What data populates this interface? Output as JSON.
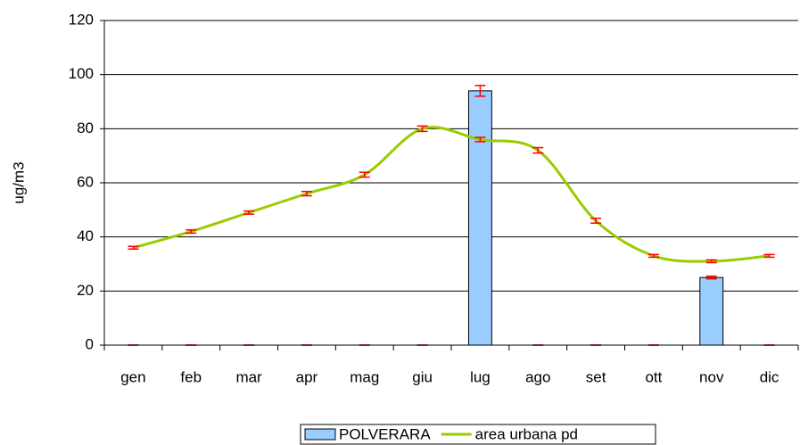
{
  "chart_data": {
    "type": "bar",
    "categories": [
      "gen",
      "feb",
      "mar",
      "apr",
      "mag",
      "giu",
      "lug",
      "ago",
      "set",
      "ott",
      "nov",
      "dic"
    ],
    "y_label": "ug/m3",
    "ylim": [
      0,
      120
    ],
    "yticks": [
      0,
      20,
      40,
      60,
      80,
      100,
      120
    ],
    "grid": true,
    "legend": "bottom",
    "error_color": "#ff0000",
    "series": [
      {
        "name": "POLVERARA",
        "type": "bar",
        "color": "#99ccff",
        "values": [
          0,
          0,
          0,
          0,
          0,
          0,
          94,
          0,
          0,
          0,
          25,
          0
        ],
        "errors": [
          0,
          0,
          0,
          0,
          0,
          0,
          2,
          0,
          0,
          0,
          0.5,
          0
        ]
      },
      {
        "name": "area urbana pd",
        "type": "line",
        "color": "#99cc00",
        "values": [
          36,
          42,
          49,
          56,
          63,
          80,
          76,
          72,
          46,
          33,
          31,
          33
        ],
        "errors": [
          0.5,
          0.6,
          0.6,
          0.8,
          0.9,
          1,
          0.8,
          1,
          0.9,
          0.5,
          0.5,
          0.5
        ]
      }
    ]
  }
}
